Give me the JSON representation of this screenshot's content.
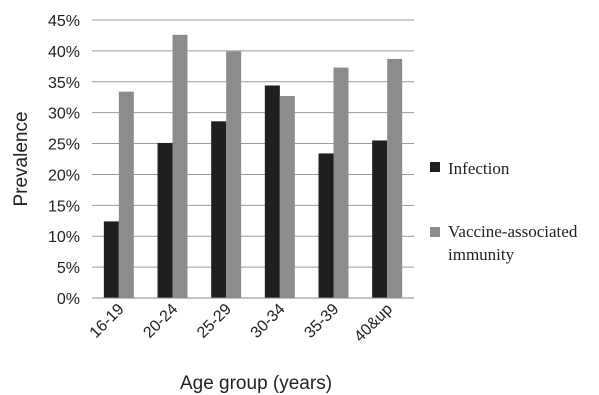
{
  "chart_data": {
    "type": "bar",
    "xlabel": "Age group (years)",
    "ylabel": "Prevalence",
    "categories": [
      "16-19",
      "20-24",
      "25-29",
      "30-34",
      "35-39",
      "40&up"
    ],
    "series": [
      {
        "name": "Infection",
        "color": "#1f1f1f",
        "values": [
          12.4,
          25.1,
          28.6,
          34.4,
          23.4,
          25.5
        ]
      },
      {
        "name": "Vaccine-associated immunity",
        "color": "#8c8c8c",
        "values": [
          33.4,
          42.6,
          39.9,
          32.7,
          37.3,
          38.7
        ]
      }
    ],
    "ylim": [
      0,
      45
    ],
    "yticks": [
      "0%",
      "5%",
      "10%",
      "15%",
      "20%",
      "25%",
      "30%",
      "35%",
      "40%",
      "45%"
    ],
    "legend_labels": [
      "Infection",
      "Vaccine-associated",
      "immunity"
    ],
    "grid": true,
    "legend_position": "right"
  }
}
